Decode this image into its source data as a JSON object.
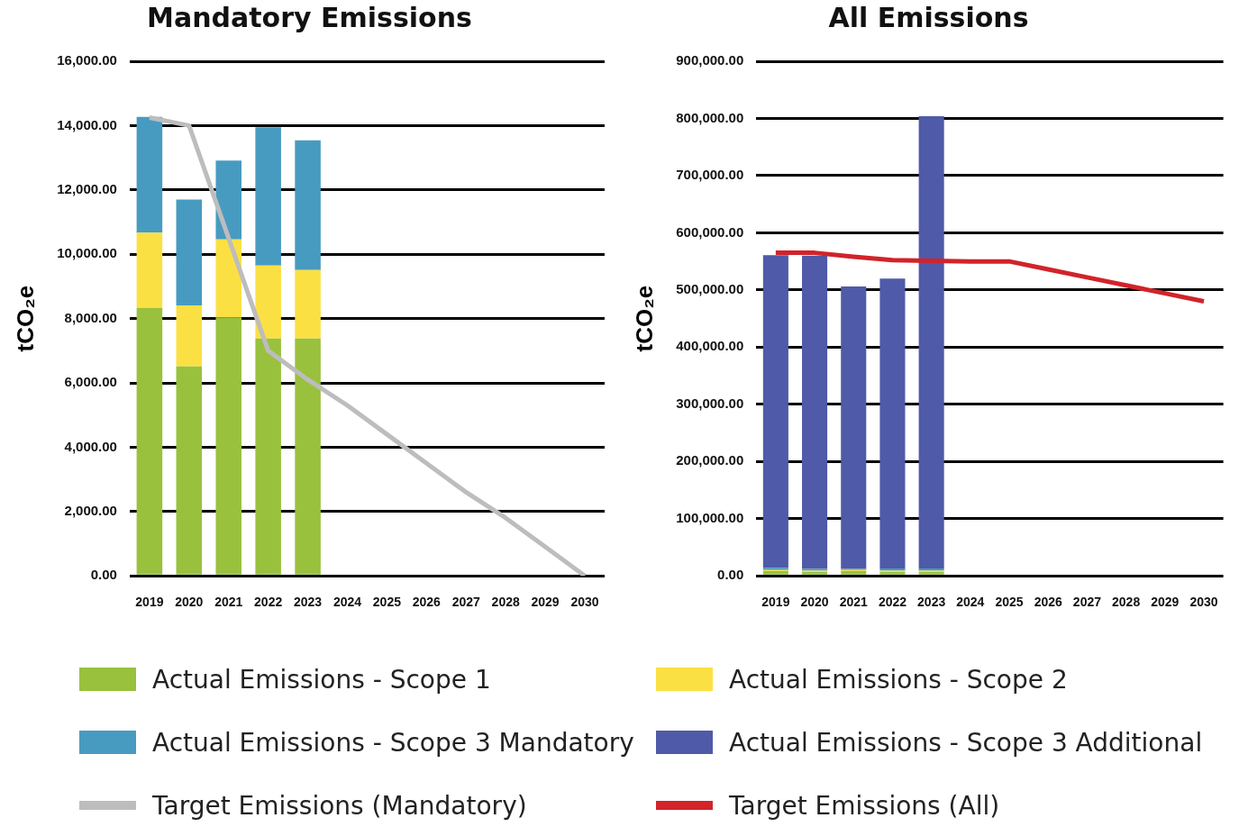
{
  "chart_data": [
    {
      "type": "bar",
      "title": "Mandatory Emissions",
      "ylabel": "tCO₂e",
      "stacked": true,
      "grid": "y",
      "legend": "bottom",
      "categories": [
        "2019",
        "2020",
        "2021",
        "2022",
        "2023",
        "2024",
        "2025",
        "2026",
        "2027",
        "2028",
        "2029",
        "2030"
      ],
      "ylim": [
        0,
        16000
      ],
      "yticks": [
        {
          "value": 0,
          "label": "0.00"
        },
        {
          "value": 2000,
          "label": "2,000.00"
        },
        {
          "value": 4000,
          "label": "4,000.00"
        },
        {
          "value": 6000,
          "label": "6,000.00"
        },
        {
          "value": 8000,
          "label": "8,000.00"
        },
        {
          "value": 10000,
          "label": "10,000.00"
        },
        {
          "value": 12000,
          "label": "12,000.00"
        },
        {
          "value": 14000,
          "label": "14,000.00"
        },
        {
          "value": 16000,
          "label": "16,000.00"
        }
      ],
      "series": [
        {
          "name": "Actual Emissions - Scope 1",
          "color": "#99c13e",
          "values": [
            8330,
            6510,
            8040,
            7380,
            7380,
            null,
            null,
            null,
            null,
            null,
            null,
            null
          ]
        },
        {
          "name": "Actual Emissions - Scope 2",
          "color": "#fbe044",
          "values": [
            2340,
            1900,
            2420,
            2270,
            2130,
            null,
            null,
            null,
            null,
            null,
            null,
            null
          ]
        },
        {
          "name": "Actual Emissions - Scope 3 Mandatory",
          "color": "#489bc0",
          "values": [
            3600,
            3290,
            2450,
            4300,
            4030,
            null,
            null,
            null,
            null,
            null,
            null,
            null
          ]
        },
        {
          "name": "Target Emissions (Mandatory)",
          "type": "line",
          "color": "#bdbdbd",
          "values": [
            14250,
            14000,
            10500,
            7000,
            6100,
            5300,
            4400,
            3500,
            2600,
            1800,
            900,
            0
          ]
        }
      ]
    },
    {
      "type": "bar",
      "title": "All Emissions",
      "ylabel": "tCO₂e",
      "stacked": true,
      "grid": "y",
      "legend": "bottom",
      "categories": [
        "2019",
        "2020",
        "2021",
        "2022",
        "2023",
        "2024",
        "2025",
        "2026",
        "2027",
        "2028",
        "2029",
        "2030"
      ],
      "ylim": [
        0,
        900000
      ],
      "yticks": [
        {
          "value": 0,
          "label": "0.00"
        },
        {
          "value": 100000,
          "label": "100,000.00"
        },
        {
          "value": 200000,
          "label": "200,000.00"
        },
        {
          "value": 300000,
          "label": "300,000.00"
        },
        {
          "value": 400000,
          "label": "400,000.00"
        },
        {
          "value": 500000,
          "label": "500,000.00"
        },
        {
          "value": 600000,
          "label": "600,000.00"
        },
        {
          "value": 700000,
          "label": "700,000.00"
        },
        {
          "value": 800000,
          "label": "800,000.00"
        },
        {
          "value": 900000,
          "label": "900,000.00"
        }
      ],
      "series": [
        {
          "name": "Actual Emissions - Scope 1",
          "color": "#99c13e",
          "values": [
            8000,
            7000,
            8000,
            7000,
            7000,
            null,
            null,
            null,
            null,
            null,
            null,
            null
          ]
        },
        {
          "name": "Actual Emissions - Scope 2",
          "color": "#fbe044",
          "values": [
            2000,
            2000,
            2000,
            2000,
            2000,
            null,
            null,
            null,
            null,
            null,
            null,
            null
          ]
        },
        {
          "name": "Actual Emissions - Scope 3 Mandatory",
          "color": "#489bc0",
          "values": [
            4000,
            3000,
            2000,
            4000,
            4000,
            null,
            null,
            null,
            null,
            null,
            null,
            null
          ]
        },
        {
          "name": "Actual Emissions - Scope 3 Additional",
          "color": "#4f5aa8",
          "values": [
            547000,
            548000,
            494000,
            507000,
            791000,
            null,
            null,
            null,
            null,
            null,
            null,
            null
          ]
        },
        {
          "name": "Target Emissions (All)",
          "type": "line",
          "color": "#d2232a",
          "values": [
            565000,
            565000,
            558000,
            552000,
            551000,
            550000,
            550000,
            536000,
            522000,
            508000,
            494000,
            480000
          ]
        }
      ]
    }
  ]
}
